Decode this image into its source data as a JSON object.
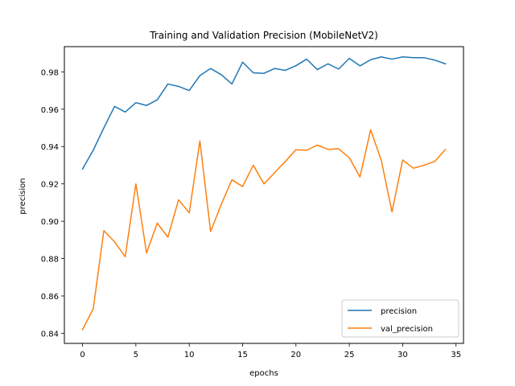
{
  "chart_data": {
    "type": "line",
    "title": "Training and Validation Precision (MobileNetV2)",
    "xlabel": "epochs",
    "ylabel": "precision",
    "xlim": [
      -1.7,
      35.7
    ],
    "ylim": [
      0.8346,
      0.9935
    ],
    "x_ticks": [
      0,
      5,
      10,
      15,
      20,
      25,
      30,
      35
    ],
    "x_tick_labels": [
      "0",
      "5",
      "10",
      "15",
      "20",
      "25",
      "30",
      "35"
    ],
    "y_ticks": [
      0.84,
      0.86,
      0.88,
      0.9,
      0.92,
      0.94,
      0.96,
      0.98
    ],
    "y_tick_labels": [
      "0.84",
      "0.86",
      "0.88",
      "0.90",
      "0.92",
      "0.94",
      "0.96",
      "0.98"
    ],
    "grid": false,
    "legend_position": "lower-right",
    "x": [
      0,
      1,
      2,
      3,
      4,
      5,
      6,
      7,
      8,
      9,
      10,
      11,
      12,
      13,
      14,
      15,
      16,
      17,
      18,
      19,
      20,
      21,
      22,
      23,
      24,
      25,
      26,
      27,
      28,
      29,
      30,
      31,
      32,
      33,
      34
    ],
    "series": [
      {
        "name": "precision",
        "color": "#1f77b4",
        "values": [
          0.928,
          0.938,
          0.95,
          0.9615,
          0.9585,
          0.9635,
          0.962,
          0.965,
          0.9735,
          0.9722,
          0.97,
          0.978,
          0.9818,
          0.9785,
          0.9735,
          0.9852,
          0.9795,
          0.9792,
          0.9818,
          0.9808,
          0.9833,
          0.9868,
          0.9812,
          0.9843,
          0.9815,
          0.9872,
          0.9832,
          0.9865,
          0.988,
          0.9868,
          0.988,
          0.9876,
          0.9876,
          0.9863,
          0.9843
        ]
      },
      {
        "name": "val_precision",
        "color": "#ff7f0e",
        "values": [
          0.842,
          0.853,
          0.895,
          0.889,
          0.881,
          0.92,
          0.883,
          0.899,
          0.8915,
          0.9115,
          0.9045,
          0.943,
          0.8945,
          0.909,
          0.9222,
          0.9186,
          0.93,
          0.92,
          0.926,
          0.932,
          0.9383,
          0.938,
          0.9408,
          0.9385,
          0.9388,
          0.934,
          0.9237,
          0.949,
          0.9325,
          0.905,
          0.9328,
          0.9284,
          0.93,
          0.932,
          0.9384
        ]
      }
    ]
  }
}
